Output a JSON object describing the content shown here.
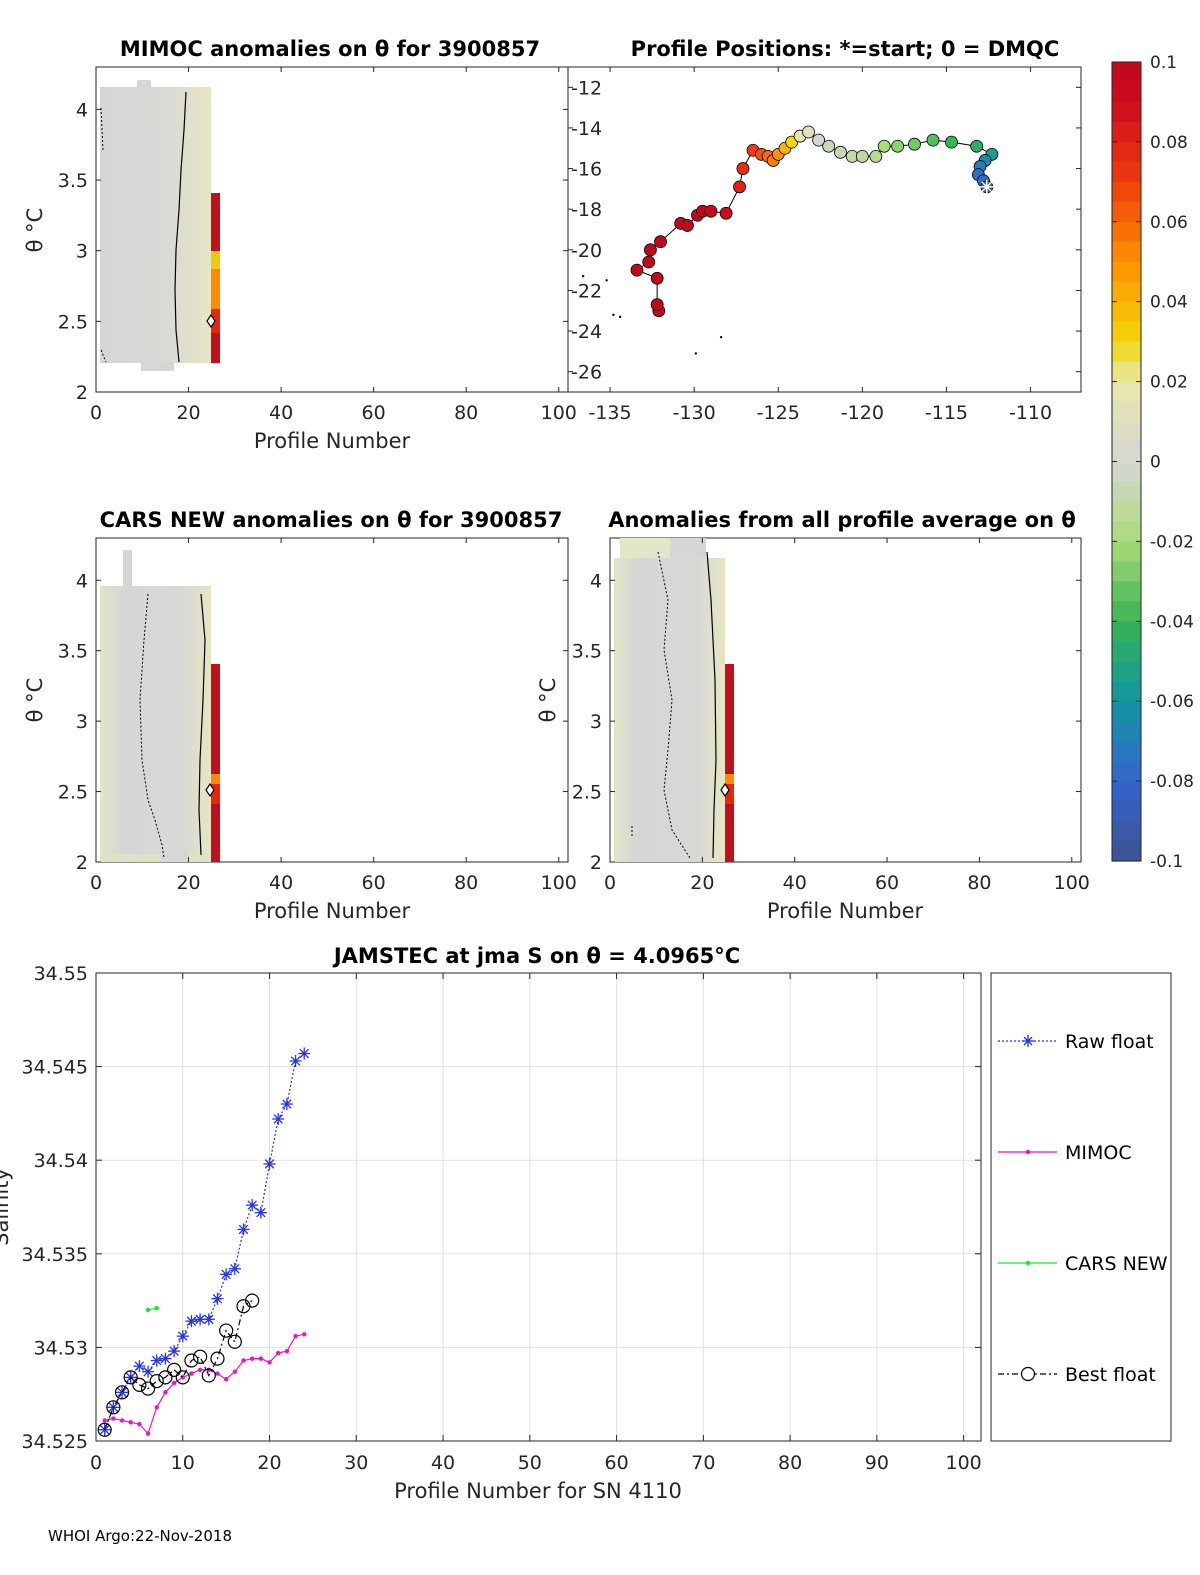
{
  "footer": "WHOI Argo:22-Nov-2018",
  "panels": {
    "mimoc": {
      "title": "MIMOC anomalies on θ  for 3900857",
      "xlabel": "Profile Number",
      "ylabel": "θ °C",
      "xticks": [
        "0",
        "20",
        "40",
        "60",
        "80",
        "100"
      ],
      "yticks": [
        "2",
        "2.5",
        "3",
        "3.5",
        "4"
      ]
    },
    "positions": {
      "title": "Profile Positions: *=start; 0 = DMQC",
      "xticks": [
        "-135",
        "-130",
        "-125",
        "-120",
        "-115",
        "-110"
      ],
      "yticks": [
        "-26",
        "-24",
        "-22",
        "-20",
        "-18",
        "-16",
        "-14",
        "-12"
      ]
    },
    "cars": {
      "title": "CARS NEW anomalies on θ for 3900857",
      "xlabel": "Profile Number",
      "ylabel": "θ °C",
      "xticks": [
        "0",
        "20",
        "40",
        "60",
        "80",
        "100"
      ],
      "yticks": [
        "2",
        "2.5",
        "3",
        "3.5",
        "4"
      ]
    },
    "allavg": {
      "title": "Anomalies from all profile average on θ",
      "xlabel": "Profile Number",
      "ylabel": "θ °C",
      "xticks": [
        "0",
        "20",
        "40",
        "60",
        "80",
        "100"
      ],
      "yticks": [
        "2",
        "2.5",
        "3",
        "3.5",
        "4"
      ]
    },
    "salinity": {
      "title": "JAMSTEC at jma S on θ = 4.0965°C",
      "xlabel": "Profile Number for SN 4110",
      "ylabel": "Salinity",
      "xticks": [
        "0",
        "10",
        "20",
        "30",
        "40",
        "50",
        "60",
        "70",
        "80",
        "90",
        "100"
      ],
      "yticks": [
        "34.525",
        "34.53",
        "34.535",
        "34.54",
        "34.545",
        "34.55"
      ]
    }
  },
  "colorbar": {
    "ticks": [
      "0.1",
      "0.08",
      "0.06",
      "0.04",
      "0.02",
      "0",
      "-0.02",
      "-0.04",
      "-0.06",
      "-0.08",
      "-0.1"
    ]
  },
  "legend": {
    "items": [
      "Raw float",
      "MIMOC",
      "CARS NEW",
      "Best float"
    ]
  },
  "chart_data": [
    {
      "type": "heatmap",
      "title": "MIMOC anomalies on θ  for 3900857",
      "xlabel": "Profile Number",
      "ylabel": "θ °C",
      "xlim": [
        0,
        100
      ],
      "ylim": [
        2,
        4.3
      ],
      "note": "anomaly field near 0 for profiles 1-24; profile 25-26 column strongly positive (~0.1) between θ 2.2 and 3.4"
    },
    {
      "type": "scatter",
      "title": "Profile Positions: *=start; 0 = DMQC",
      "xlim": [
        -137.5,
        -107
      ],
      "ylim": [
        -27,
        -11
      ],
      "colorbar": {
        "min": -0.1,
        "max": 0.1
      },
      "track": [
        {
          "lon": -112.6,
          "lat": -16.9,
          "c": -0.09
        },
        {
          "lon": -112.8,
          "lat": -16.6,
          "c": -0.08
        },
        {
          "lon": -113.1,
          "lat": -16.3,
          "c": -0.075
        },
        {
          "lon": -113.0,
          "lat": -15.9,
          "c": -0.07
        },
        {
          "lon": -112.7,
          "lat": -15.6,
          "c": -0.065
        },
        {
          "lon": -112.3,
          "lat": -15.3,
          "c": -0.055
        },
        {
          "lon": -113.2,
          "lat": -14.9,
          "c": -0.045
        },
        {
          "lon": -114.7,
          "lat": -14.7,
          "c": -0.04
        },
        {
          "lon": -115.8,
          "lat": -14.6,
          "c": -0.035
        },
        {
          "lon": -116.9,
          "lat": -14.8,
          "c": -0.03
        },
        {
          "lon": -117.9,
          "lat": -14.9,
          "c": -0.025
        },
        {
          "lon": -118.7,
          "lat": -14.9,
          "c": -0.02
        },
        {
          "lon": -119.2,
          "lat": -15.4,
          "c": -0.015
        },
        {
          "lon": -120.0,
          "lat": -15.4,
          "c": -0.012
        },
        {
          "lon": -120.6,
          "lat": -15.4,
          "c": -0.01
        },
        {
          "lon": -121.3,
          "lat": -15.2,
          "c": -0.008
        },
        {
          "lon": -122.0,
          "lat": -14.9,
          "c": -0.006
        },
        {
          "lon": -122.6,
          "lat": -14.6,
          "c": 0.0
        },
        {
          "lon": -123.2,
          "lat": -14.2,
          "c": 0.01
        },
        {
          "lon": -123.7,
          "lat": -14.4,
          "c": 0.02
        },
        {
          "lon": -124.2,
          "lat": -14.7,
          "c": 0.03
        },
        {
          "lon": -124.6,
          "lat": -15.0,
          "c": 0.04
        },
        {
          "lon": -125.0,
          "lat": -15.3,
          "c": 0.05
        },
        {
          "lon": -125.3,
          "lat": -15.6,
          "c": 0.055
        },
        {
          "lon": -125.6,
          "lat": -15.4,
          "c": 0.06
        },
        {
          "lon": -126.0,
          "lat": -15.3,
          "c": 0.065
        },
        {
          "lon": -126.5,
          "lat": -15.1,
          "c": 0.07
        },
        {
          "lon": -127.1,
          "lat": -16.0,
          "c": 0.075
        },
        {
          "lon": -127.3,
          "lat": -16.9,
          "c": 0.08
        },
        {
          "lon": -128.1,
          "lat": -18.2,
          "c": 0.09
        },
        {
          "lon": -129.0,
          "lat": -18.1,
          "c": 0.095
        },
        {
          "lon": -129.5,
          "lat": -18.1,
          "c": 0.1
        },
        {
          "lon": -129.8,
          "lat": -18.3,
          "c": 0.1
        },
        {
          "lon": -130.4,
          "lat": -18.8,
          "c": 0.1
        },
        {
          "lon": -130.8,
          "lat": -18.7,
          "c": 0.1
        },
        {
          "lon": -132.0,
          "lat": -19.6,
          "c": 0.1
        },
        {
          "lon": -132.6,
          "lat": -20.0,
          "c": 0.1
        },
        {
          "lon": -132.7,
          "lat": -20.6,
          "c": 0.1
        },
        {
          "lon": -133.4,
          "lat": -21.0,
          "c": 0.1
        },
        {
          "lon": -132.2,
          "lat": -21.4,
          "c": 0.1
        },
        {
          "lon": -132.2,
          "lat": -22.7,
          "c": 0.1
        },
        {
          "lon": -132.1,
          "lat": -23.0,
          "c": 0.1
        }
      ],
      "stray_points": [
        {
          "lon": -136.6,
          "lat": -21.3
        },
        {
          "lon": -135.2,
          "lat": -21.5
        },
        {
          "lon": -134.8,
          "lat": -23.2
        },
        {
          "lon": -134.4,
          "lat": -23.3
        },
        {
          "lon": -129.9,
          "lat": -25.1
        },
        {
          "lon": -128.4,
          "lat": -24.3
        }
      ]
    },
    {
      "type": "heatmap",
      "title": "CARS NEW anomalies on θ for 3900857",
      "xlabel": "Profile Number",
      "ylabel": "θ °C",
      "xlim": [
        0,
        100
      ],
      "ylim": [
        2,
        4.3
      ],
      "note": "anomaly field near 0 for profiles 1-24; profile 25-26 column strongly positive between θ 2.0 and 3.4"
    },
    {
      "type": "heatmap",
      "title": "Anomalies from all profile average on θ",
      "xlabel": "Profile Number",
      "ylabel": "θ °C",
      "xlim": [
        0,
        100
      ],
      "ylim": [
        2,
        4.3
      ],
      "note": "anomaly field near 0 for profiles 1-24; profile 25-26 column strongly positive between θ 2.0 and 3.4"
    },
    {
      "type": "line",
      "title": "JAMSTEC at jma S on θ = 4.0965°C",
      "xlabel": "Profile Number for SN 4110",
      "ylabel": "Salinity",
      "xlim": [
        0,
        102
      ],
      "ylim": [
        34.525,
        34.55
      ],
      "series": [
        {
          "name": "Raw float",
          "x": [
            1,
            2,
            3,
            4,
            5,
            6,
            7,
            8,
            9,
            10,
            11,
            12,
            13,
            14,
            15,
            16,
            17,
            18,
            19,
            20,
            21,
            22,
            23,
            24
          ],
          "y": [
            34.5256,
            34.5268,
            34.5276,
            34.5284,
            34.529,
            34.5287,
            34.5293,
            34.5294,
            34.5298,
            34.5306,
            34.5314,
            34.5315,
            34.5315,
            34.5326,
            34.5339,
            34.5342,
            34.5363,
            34.5376,
            34.5372,
            34.5398,
            34.5422,
            34.543,
            34.5453,
            34.5457
          ]
        },
        {
          "name": "MIMOC",
          "x": [
            1,
            2,
            3,
            4,
            5,
            6,
            7,
            8,
            9,
            10,
            11,
            12,
            13,
            14,
            15,
            16,
            17,
            18,
            19,
            20,
            21,
            22,
            23,
            24
          ],
          "y": [
            34.5261,
            34.5262,
            34.5261,
            34.526,
            34.5259,
            34.5254,
            34.5268,
            34.5276,
            34.5281,
            34.5284,
            34.5286,
            34.5288,
            34.5288,
            34.5286,
            34.5283,
            34.5287,
            34.5293,
            34.5294,
            34.5294,
            34.5292,
            34.5297,
            34.5298,
            34.5306,
            34.5307
          ]
        },
        {
          "name": "CARS NEW",
          "x": [
            6,
            7
          ],
          "y": [
            34.532,
            34.5321
          ]
        },
        {
          "name": "Best float",
          "x": [
            1,
            2,
            3,
            4,
            5,
            6,
            7,
            8,
            9,
            10,
            11,
            12,
            13,
            14,
            15,
            16,
            17,
            18
          ],
          "y": [
            34.5256,
            34.5268,
            34.5276,
            34.5284,
            34.528,
            34.5278,
            34.5282,
            34.5284,
            34.5288,
            34.5284,
            34.5293,
            34.5295,
            34.5285,
            34.5294,
            34.5309,
            34.5303,
            34.5322,
            34.5325
          ]
        }
      ]
    }
  ]
}
